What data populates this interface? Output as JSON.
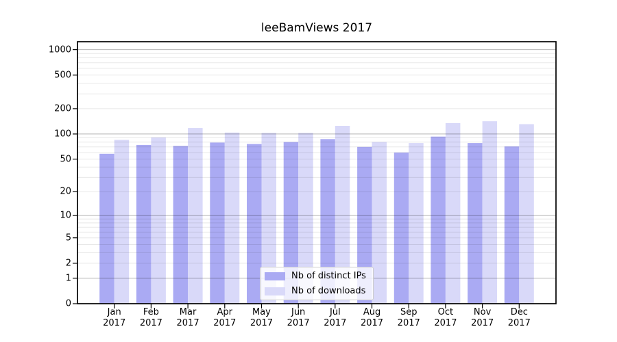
{
  "chart_data": {
    "type": "bar",
    "title": "leeBamViews 2017",
    "categories": [
      "Jan",
      "Feb",
      "Mar",
      "Apr",
      "May",
      "Jun",
      "Jul",
      "Aug",
      "Sep",
      "Oct",
      "Nov",
      "Dec"
    ],
    "year": "2017",
    "series": [
      {
        "name": "Nb of distinct IPs",
        "color": "#aaaaf3",
        "values": [
          58,
          74,
          72,
          79,
          76,
          80,
          87,
          70,
          60,
          93,
          78,
          71
        ]
      },
      {
        "name": "Nb of downloads",
        "color": "#d9d9f9",
        "values": [
          85,
          91,
          118,
          104,
          103,
          103,
          125,
          80,
          78,
          135,
          142,
          131
        ]
      }
    ],
    "yticks": [
      0,
      1,
      2,
      5,
      10,
      20,
      50,
      100,
      200,
      500,
      1000
    ],
    "scale": "log1p",
    "ylim": [
      0,
      1240
    ],
    "grid": true,
    "legend_position": "lower center",
    "colors": {
      "grid_major": "#b3b3b3",
      "grid_minor": "#e8e8e8",
      "axis": "#000000",
      "legend_border": "#cccccc"
    }
  }
}
